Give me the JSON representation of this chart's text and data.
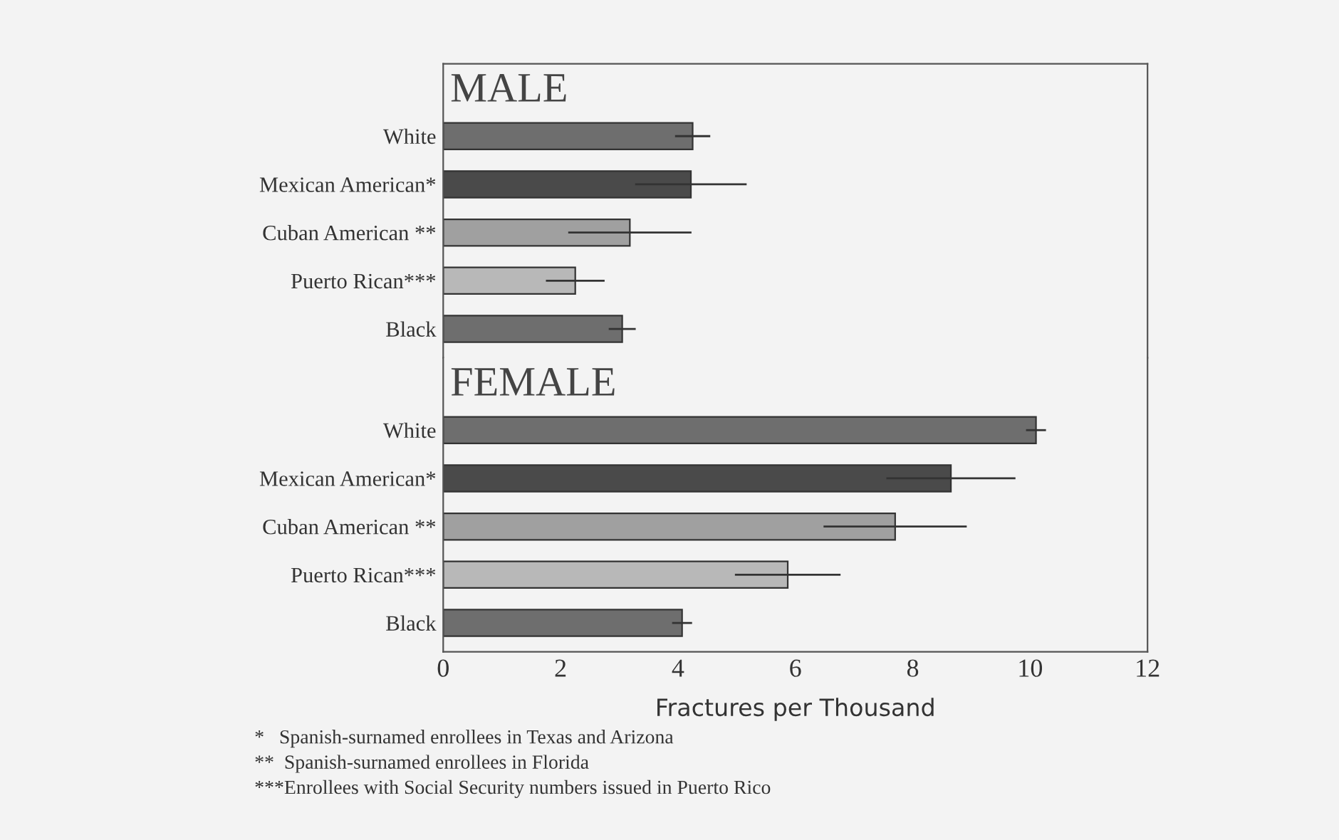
{
  "chart_data": [
    {
      "type": "bar",
      "orientation": "horizontal",
      "title": "MALE",
      "categories": [
        "White",
        "Mexican American*",
        "Cuban American **",
        "Puerto Rican***",
        "Black"
      ],
      "values": [
        4.25,
        4.22,
        3.18,
        2.25,
        3.05
      ],
      "errors": [
        0.3,
        0.95,
        1.05,
        0.5,
        0.23
      ],
      "colors": [
        "#6e6e6e",
        "#4a4a4a",
        "#a0a0a0",
        "#b8b8b8",
        "#6e6e6e"
      ],
      "xlim": [
        0,
        12
      ],
      "xticks": [
        0,
        2,
        4,
        6,
        8,
        10,
        12
      ],
      "tick_labels": "y"
    },
    {
      "type": "bar",
      "orientation": "horizontal",
      "title": "FEMALE",
      "categories": [
        "White",
        "Mexican American*",
        "Cuban American **",
        "Puerto Rican***",
        "Black"
      ],
      "values": [
        10.1,
        8.65,
        7.7,
        5.87,
        4.07
      ],
      "errors": [
        0.17,
        1.1,
        1.22,
        0.9,
        0.17
      ],
      "colors": [
        "#6e6e6e",
        "#4a4a4a",
        "#a0a0a0",
        "#b8b8b8",
        "#6e6e6e"
      ],
      "xlim": [
        0,
        12
      ],
      "xticks": [
        0,
        2,
        4,
        6,
        8,
        10,
        12
      ],
      "xlabel": "Fractures per Thousand",
      "annotations": [
        "*   Spanish-surnamed enrollees in Texas and Arizona",
        "**  Spanish-surnamed enrollees in Florida",
        "***Enrollees with Social Security numbers issued in Puerto Rico"
      ]
    }
  ]
}
